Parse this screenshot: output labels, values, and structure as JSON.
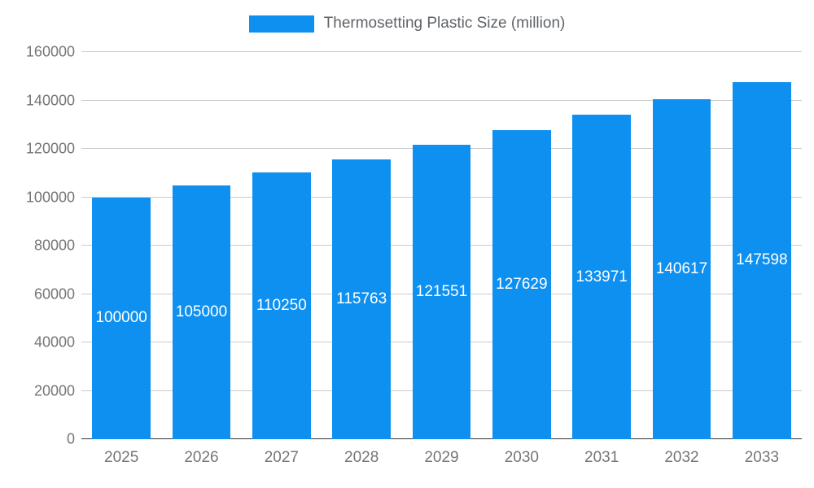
{
  "legend": {
    "label": "Thermosetting Plastic Size (million)"
  },
  "colors": {
    "bar": "#0e90f0",
    "grid": "#cccccc",
    "baseline": "#333333",
    "axis_text": "#757575",
    "legend_text": "#5f6368",
    "bar_label_text": "#ffffff"
  },
  "chart_data": {
    "type": "bar",
    "title": "Thermosetting Plastic Size (million)",
    "categories": [
      "2025",
      "2026",
      "2027",
      "2028",
      "2029",
      "2030",
      "2031",
      "2032",
      "2033"
    ],
    "values": [
      100000,
      105000,
      110250,
      115763,
      121551,
      127629,
      133971,
      140617,
      147598
    ],
    "bar_labels": [
      "100000",
      "105000",
      "110250",
      "115763",
      "121551",
      "127629",
      "133971",
      "140617",
      "147598"
    ],
    "xlabel": "",
    "ylabel": "",
    "ylim": [
      0,
      160000
    ],
    "yticks": [
      0,
      20000,
      40000,
      60000,
      80000,
      100000,
      120000,
      140000,
      160000
    ],
    "grid": true,
    "legend_position": "top"
  }
}
